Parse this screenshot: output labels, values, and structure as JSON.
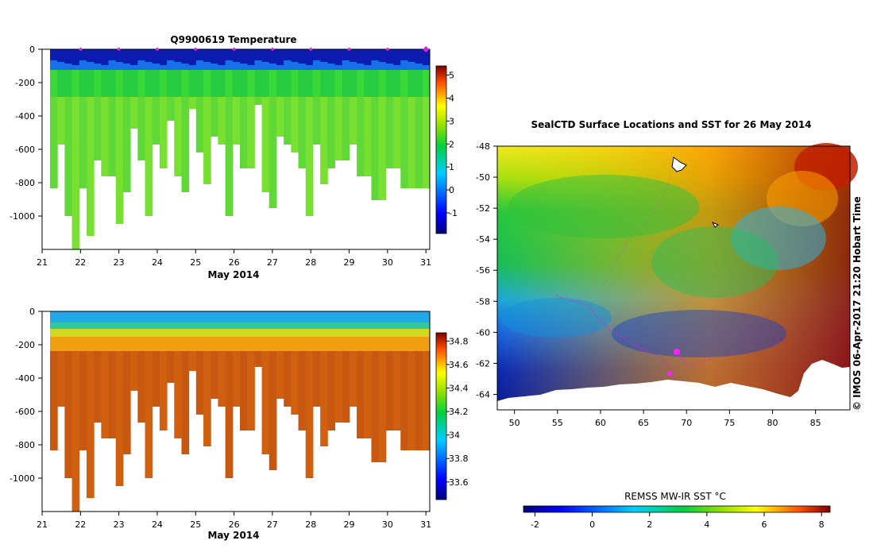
{
  "chart_data": [
    {
      "type": "heatmap",
      "title": "Q9900619  Temperature",
      "xlabel": "May 2014",
      "ylabel": "",
      "xlim": [
        21,
        31.1
      ],
      "ylim": [
        -1200,
        0
      ],
      "x_ticks": [
        "21",
        "22",
        "23",
        "24",
        "25",
        "26",
        "27",
        "28",
        "29",
        "30",
        "31"
      ],
      "y_ticks": [
        "0",
        "-200",
        "-400",
        "-600",
        "-800",
        "-1000"
      ],
      "profile_markers_x": [
        22,
        23,
        24,
        25,
        26,
        27,
        28,
        29,
        30,
        31
      ],
      "colorbar": {
        "min": -1.9,
        "max": 5.4,
        "ticks": [
          "5",
          "4",
          "3",
          "2",
          "1",
          "0",
          "-1"
        ]
      }
    },
    {
      "type": "heatmap",
      "title": "",
      "xlabel": "May 2014",
      "ylabel": "",
      "xlim": [
        21,
        31.1
      ],
      "ylim": [
        -1200,
        0
      ],
      "x_ticks": [
        "21",
        "22",
        "23",
        "24",
        "25",
        "26",
        "27",
        "28",
        "29",
        "30",
        "31"
      ],
      "y_ticks": [
        "0",
        "-200",
        "-400",
        "-600",
        "-800",
        "-1000"
      ],
      "colorbar": {
        "min": 33.45,
        "max": 34.87,
        "ticks": [
          "34.8",
          "34.6",
          "34.4",
          "34.2",
          "34",
          "33.8",
          "33.6"
        ]
      }
    },
    {
      "type": "heatmap",
      "title": "SealCTD Surface Locations and SST for 26 May 2014",
      "xlabel": "",
      "ylabel": "",
      "xlim": [
        48,
        89
      ],
      "ylim": [
        -65,
        -48
      ],
      "x_ticks": [
        "50",
        "55",
        "60",
        "65",
        "70",
        "75",
        "80",
        "85"
      ],
      "y_ticks": [
        "-48",
        "-50",
        "-52",
        "-54",
        "-56",
        "-58",
        "-60",
        "-62",
        "-64"
      ],
      "colorbar": {
        "label": "REMSS MW-IR SST °C",
        "min": -2.4,
        "max": 8.3,
        "ticks": [
          "-2",
          "0",
          "2",
          "4",
          "6",
          "8"
        ]
      },
      "credit": "© IMOS 06-Apr-2017 21:20 Hobart Time"
    }
  ]
}
